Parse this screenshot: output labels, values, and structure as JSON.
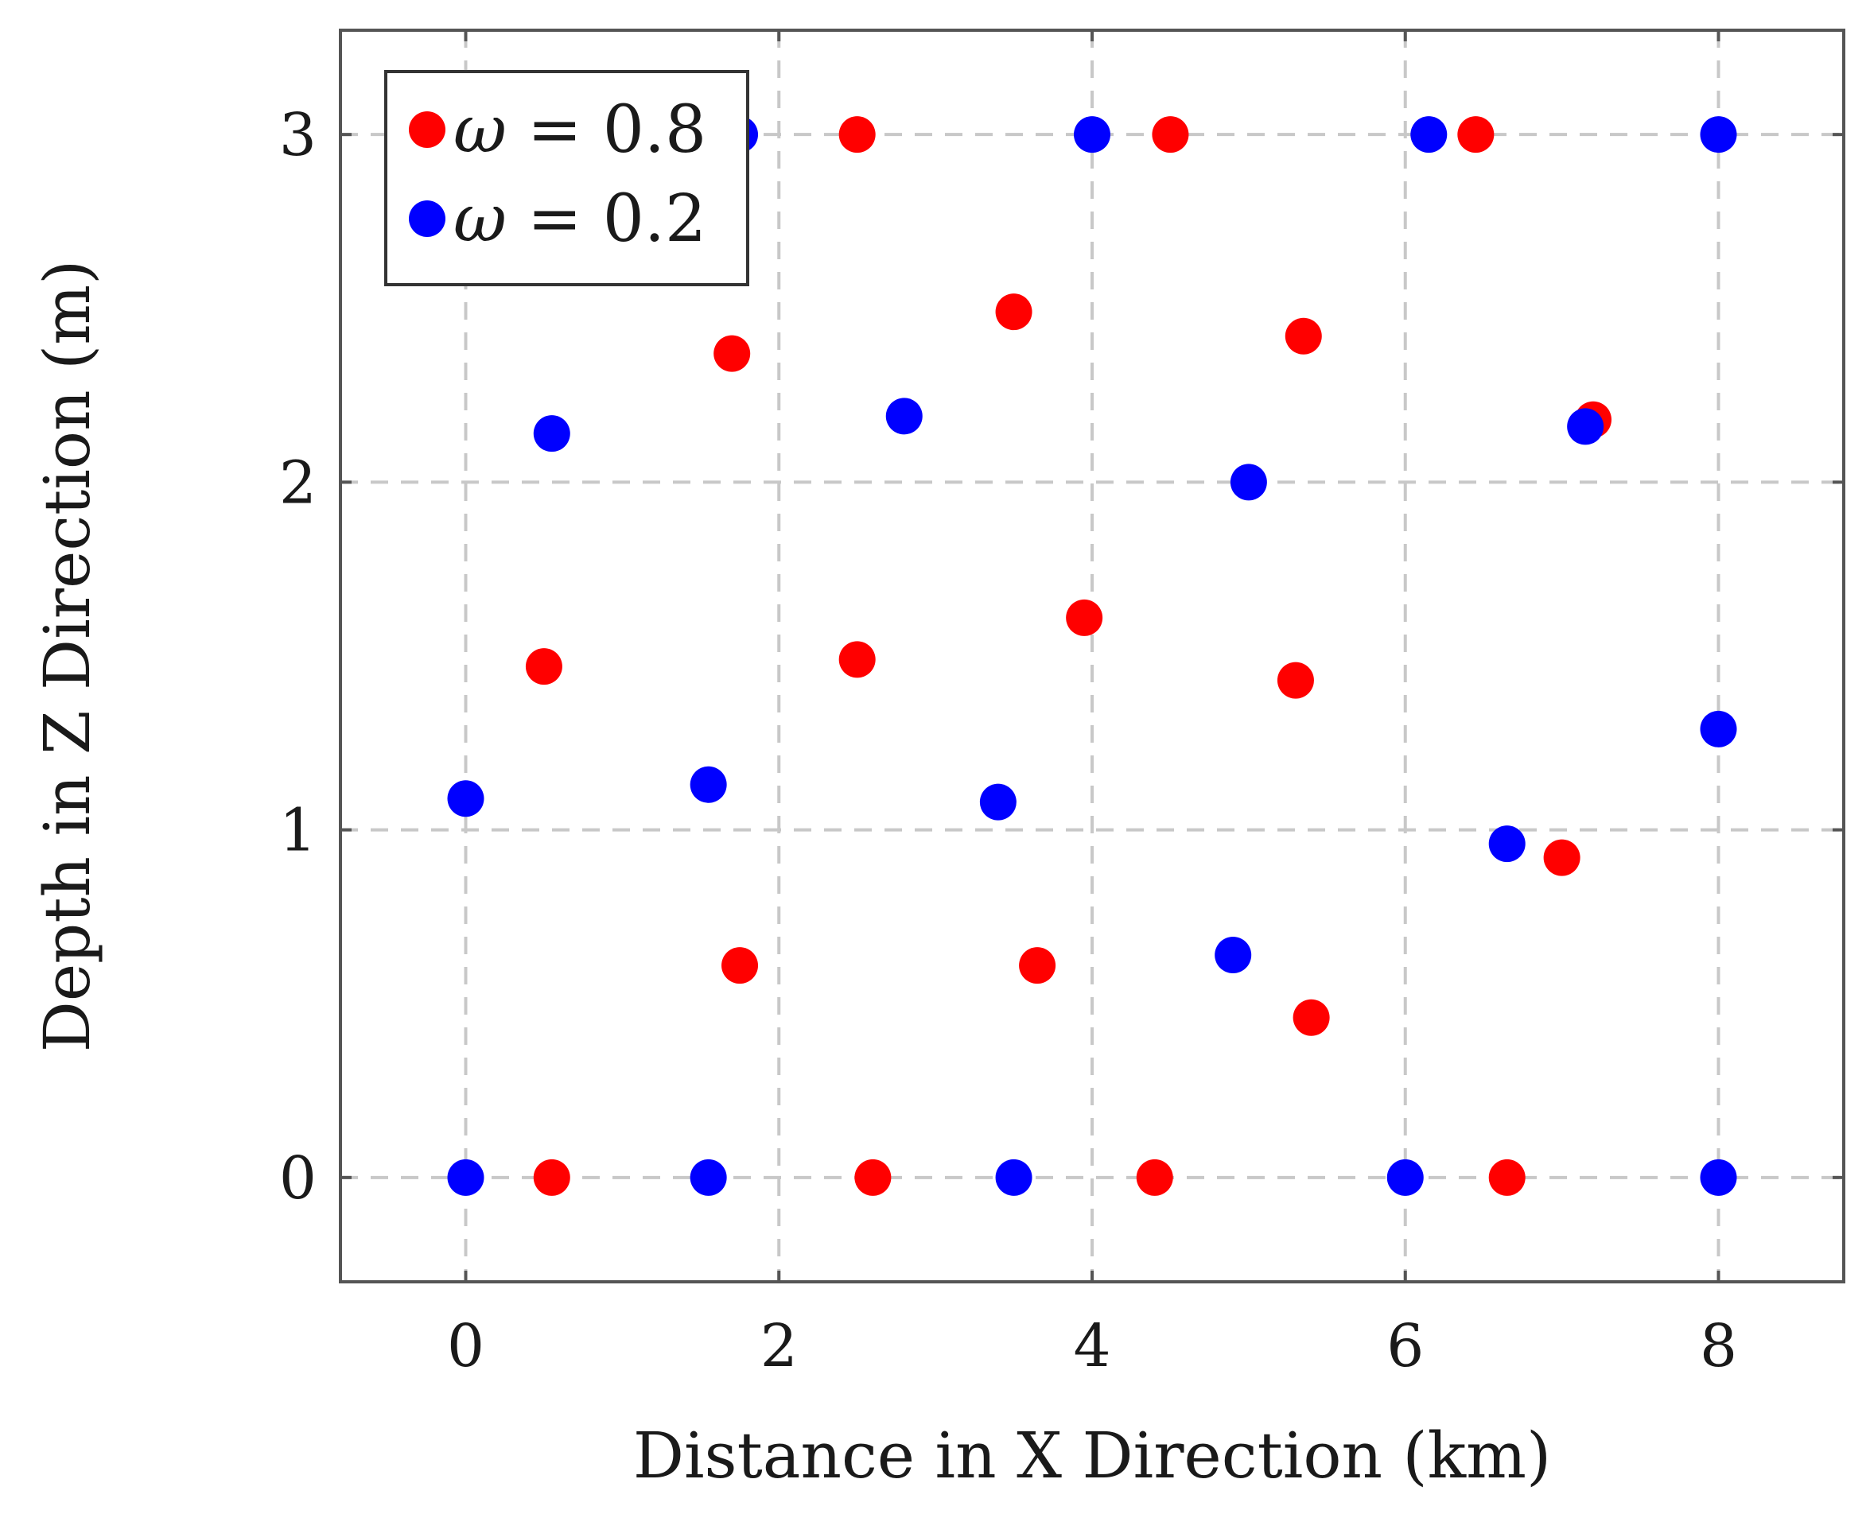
{
  "chart_data": {
    "type": "scatter",
    "xlabel": "Distance in X Direction (km)",
    "ylabel": "Depth in Z Direction (m)",
    "xlim": [
      -0.8,
      8.8
    ],
    "ylim": [
      -0.3,
      3.3
    ],
    "xticks": [
      0,
      2,
      4,
      6,
      8
    ],
    "yticks": [
      0,
      1,
      2,
      3
    ],
    "xtick_labels": [
      "0",
      "2",
      "4",
      "6",
      "8"
    ],
    "ytick_labels": [
      "0",
      "1",
      "2",
      "3"
    ],
    "grid": true,
    "legend_position": "top-left",
    "series": [
      {
        "name": "ω = 0.8",
        "legend_symbol": "ω",
        "legend_rest": " = 0.8",
        "color": "#ff0000",
        "points": [
          [
            2.5,
            3.0
          ],
          [
            4.5,
            3.0
          ],
          [
            6.45,
            3.0
          ],
          [
            3.5,
            2.49
          ],
          [
            5.35,
            2.42
          ],
          [
            1.7,
            2.37
          ],
          [
            7.2,
            2.18
          ],
          [
            3.95,
            1.61
          ],
          [
            2.5,
            1.49
          ],
          [
            0.5,
            1.47
          ],
          [
            5.3,
            1.43
          ],
          [
            7.0,
            0.92
          ],
          [
            1.75,
            0.61
          ],
          [
            3.65,
            0.61
          ],
          [
            5.4,
            0.46
          ],
          [
            0.55,
            0.0
          ],
          [
            2.6,
            0.0
          ],
          [
            4.4,
            0.0
          ],
          [
            6.65,
            0.0
          ]
        ]
      },
      {
        "name": "ω = 0.2",
        "legend_symbol": "ω",
        "legend_rest": " = 0.2",
        "color": "#0000ff",
        "points": [
          [
            1.75,
            3.0
          ],
          [
            4.0,
            3.0
          ],
          [
            6.15,
            3.0
          ],
          [
            8.0,
            3.0
          ],
          [
            0.55,
            2.14
          ],
          [
            2.8,
            2.19
          ],
          [
            7.15,
            2.16
          ],
          [
            5.0,
            2.0
          ],
          [
            8.0,
            1.29
          ],
          [
            0.0,
            1.09
          ],
          [
            1.55,
            1.13
          ],
          [
            3.4,
            1.08
          ],
          [
            6.65,
            0.96
          ],
          [
            4.9,
            0.64
          ],
          [
            0.0,
            0.0
          ],
          [
            1.55,
            0.0
          ],
          [
            3.5,
            0.0
          ],
          [
            6.0,
            0.0
          ],
          [
            8.0,
            0.0
          ]
        ]
      }
    ]
  }
}
